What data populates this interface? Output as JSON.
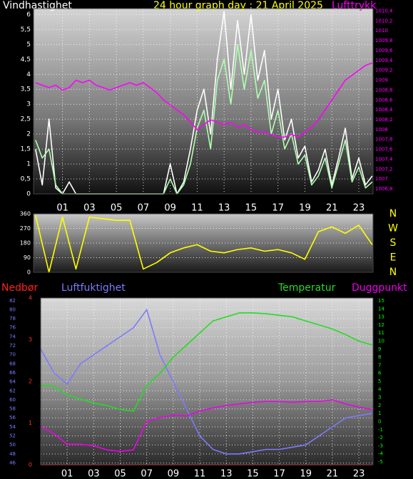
{
  "chart_data": [
    {
      "type": "line",
      "title": "24 hour graph day : 21 April 2025",
      "title_color": "#ffff00",
      "x": [
        -1,
        -0.5,
        0,
        0.5,
        1,
        1.5,
        2,
        2.5,
        3,
        3.5,
        4,
        4.5,
        5,
        5.5,
        6,
        6.5,
        7,
        7.5,
        8,
        8.5,
        9,
        9.5,
        10,
        10.5,
        11,
        11.5,
        12,
        12.5,
        13,
        13.5,
        14,
        14.5,
        15,
        15.5,
        16,
        16.5,
        17,
        17.5,
        18,
        18.5,
        19,
        19.5,
        20,
        20.5,
        21,
        21.5,
        22,
        22.5,
        23,
        23.5,
        24
      ],
      "xlim": [
        -1.15,
        24.06
      ],
      "xticks": [
        {
          "value": 1,
          "label": "01"
        },
        {
          "value": 3,
          "label": "03"
        },
        {
          "value": 5,
          "label": "05"
        },
        {
          "value": 7,
          "label": "07"
        },
        {
          "value": 9,
          "label": "09"
        },
        {
          "value": 11,
          "label": "11"
        },
        {
          "value": 13,
          "label": "13"
        },
        {
          "value": 15,
          "label": "15"
        },
        {
          "value": 17,
          "label": "17"
        },
        {
          "value": 19,
          "label": "19"
        },
        {
          "value": 21,
          "label": "21"
        },
        {
          "value": 23,
          "label": "23"
        }
      ],
      "ylim": [
        0,
        6.2
      ],
      "yticks": [
        0,
        {
          "value": 0.5,
          "label": "0,5"
        },
        1,
        {
          "value": 1.5,
          "label": "1,5"
        },
        2,
        {
          "value": 2.5,
          "label": "2,5"
        },
        3,
        {
          "value": 3.5,
          "label": "3,5"
        },
        4,
        {
          "value": 4.5,
          "label": "4,5"
        },
        5,
        {
          "value": 5.5,
          "label": "5,5"
        },
        6
      ],
      "y2lim": [
        1006.7,
        1010.45
      ],
      "y2ticks": [
        {
          "value": 1006.8,
          "label": "1006,8"
        },
        1007,
        {
          "value": 1007.2,
          "label": "1007,2"
        },
        {
          "value": 1007.4,
          "label": "1007,4"
        },
        {
          "value": 1007.6,
          "label": "1007,6"
        },
        {
          "value": 1007.8,
          "label": "1007,8"
        },
        1008,
        {
          "value": 1008.2,
          "label": "1008,2"
        },
        {
          "value": 1008.4,
          "label": "1008,4"
        },
        {
          "value": 1008.6,
          "label": "1008,6"
        },
        {
          "value": 1008.8,
          "label": "1008,8"
        },
        1009,
        {
          "value": 1009.2,
          "label": "1009,2"
        },
        {
          "value": 1009.4,
          "label": "1009,4"
        },
        {
          "value": 1009.6,
          "label": "1009,6"
        },
        {
          "value": 1009.8,
          "label": "1009,8"
        },
        1010,
        {
          "value": 1010.2,
          "label": "1010,2"
        },
        {
          "value": 1010.4,
          "label": "1010,4"
        }
      ],
      "grid": true,
      "y_color": "#ffffff",
      "y2_color": "#ff00ff",
      "series": [
        {
          "name": "Vindhastighet",
          "color": "#ffffff",
          "values": [
            1.5,
            0.3,
            2.5,
            0.2,
            0,
            0.4,
            0,
            0,
            0,
            0,
            0,
            0,
            0,
            0,
            0,
            0,
            0,
            0,
            0,
            0,
            1,
            0,
            0.4,
            1.5,
            2.8,
            3.5,
            2,
            4.5,
            6.1,
            3.5,
            5.8,
            4,
            6,
            3.8,
            4.8,
            2.5,
            3.5,
            1.8,
            2.5,
            1.2,
            1.6,
            0.4,
            0.8,
            1.5,
            0.3,
            1.2,
            2.2,
            0.5,
            1.2,
            0.3,
            0.6
          ]
        },
        {
          "color": "#b0ffb0",
          "values": [
            1.8,
            1.2,
            1.5,
            0.3,
            0,
            0,
            0,
            0,
            0,
            0,
            0,
            0,
            0,
            0,
            0,
            0,
            0,
            0,
            0,
            0,
            0.5,
            0,
            0.3,
            1,
            2.2,
            2.8,
            1.5,
            3.8,
            4.5,
            3,
            5,
            3.5,
            4.8,
            3.2,
            3.8,
            2,
            2.8,
            1.5,
            2,
            1,
            1.3,
            0.3,
            0.6,
            1.2,
            0.2,
            1,
            1.8,
            0.4,
            0.9,
            0.2,
            0.4
          ]
        },
        {
          "name": "Lufttrykk",
          "color": "#ff00ff",
          "axis": "y2",
          "values": [
            1008.95,
            1008.9,
            1008.85,
            1008.9,
            1008.8,
            1008.85,
            1009.0,
            1008.95,
            1009.0,
            1008.9,
            1008.85,
            1008.8,
            1008.85,
            1008.9,
            1008.95,
            1008.9,
            1008.95,
            1008.85,
            1008.75,
            1008.6,
            1008.5,
            1008.4,
            1008.3,
            1008.15,
            1008.0,
            1008.1,
            1008.2,
            1008.15,
            1008.1,
            1008.15,
            1008.05,
            1008.1,
            1008.0,
            1007.95,
            1007.95,
            1007.9,
            1007.85,
            1007.85,
            1007.9,
            1007.85,
            1007.95,
            1008.05,
            1008.2,
            1008.4,
            1008.6,
            1008.8,
            1009.0,
            1009.1,
            1009.2,
            1009.3,
            1009.35
          ]
        }
      ]
    },
    {
      "type": "line",
      "x": [
        -1,
        0,
        1,
        2,
        3,
        4,
        5,
        6,
        7,
        8,
        9,
        10,
        11,
        12,
        13,
        14,
        15,
        16,
        17,
        18,
        19,
        20,
        21,
        22,
        23,
        24
      ],
      "xlim": [
        -1.15,
        24.06
      ],
      "ylim": [
        0,
        360
      ],
      "yticks": [
        0,
        90,
        180,
        270,
        360
      ],
      "y2lim": [
        0,
        360
      ],
      "y2ticks": [
        {
          "value": 360,
          "label": "N"
        },
        {
          "value": 270,
          "label": "W"
        },
        {
          "value": 180,
          "label": "S"
        },
        {
          "value": 90,
          "label": "E"
        },
        {
          "value": 0,
          "label": "N"
        }
      ],
      "grid": true,
      "y_color": "#ffffff",
      "y2_color": "#ffff00",
      "series": [
        {
          "color": "#ffff00",
          "values": [
            350,
            0,
            340,
            20,
            340,
            330,
            320,
            320,
            20,
            60,
            120,
            150,
            170,
            130,
            120,
            140,
            150,
            130,
            140,
            120,
            80,
            250,
            280,
            240,
            290,
            170
          ]
        }
      ]
    },
    {
      "type": "line",
      "x": [
        -1,
        0,
        1,
        2,
        3,
        4,
        5,
        6,
        7,
        8,
        9,
        10,
        11,
        12,
        13,
        14,
        15,
        16,
        17,
        18,
        19,
        20,
        21,
        22,
        23,
        24
      ],
      "xlim": [
        -1,
        24.07
      ],
      "xticks": [
        {
          "value": 1,
          "label": "01"
        },
        {
          "value": 3,
          "label": "03"
        },
        {
          "value": 5,
          "label": "05"
        },
        {
          "value": 7,
          "label": "07"
        },
        {
          "value": 9,
          "label": "09"
        },
        {
          "value": 11,
          "label": "11"
        },
        {
          "value": 13,
          "label": "13"
        },
        {
          "value": 15,
          "label": "15"
        },
        {
          "value": 17,
          "label": "17"
        },
        {
          "value": 19,
          "label": "19"
        },
        {
          "value": 21,
          "label": "21"
        },
        {
          "value": 23,
          "label": "23"
        }
      ],
      "ylim": [
        45.6,
        82.6
      ],
      "yticks": [
        46,
        48,
        50,
        52,
        54,
        56,
        58,
        60,
        62,
        64,
        66,
        68,
        70,
        72,
        74,
        76,
        78,
        80,
        82
      ],
      "y2lim": [
        -5.35,
        15.35
      ],
      "y2ticks": [
        -5,
        -4,
        -3,
        -2,
        -1,
        0,
        1,
        2,
        3,
        4,
        5,
        6,
        7,
        8,
        9,
        10,
        11,
        12,
        13,
        14,
        15
      ],
      "y3lim": [
        0,
        4
      ],
      "y3ticks": [
        0,
        1,
        2,
        3,
        4
      ],
      "grid": true,
      "y_color": "#7b7bff",
      "y2_color": "#00ff00",
      "y3_color": "#ff3030",
      "series": [
        {
          "name": "Nedbør",
          "color": "#ff2020",
          "axis": "y3",
          "values": [
            0,
            0,
            0,
            0,
            0,
            0,
            0,
            0,
            0,
            0,
            0,
            0,
            0,
            0,
            0,
            0,
            0,
            0,
            0,
            0,
            0,
            0,
            0,
            0,
            0,
            0
          ]
        },
        {
          "name": "Luftfuktighet",
          "color": "#7b7bff",
          "values": [
            71.3,
            66,
            63.5,
            68,
            70,
            72,
            74,
            76,
            80,
            70,
            64,
            58,
            52,
            49,
            48,
            48,
            48.5,
            49,
            49,
            49.5,
            50,
            52,
            54,
            56,
            56.5,
            57
          ]
        },
        {
          "name": "Temperatur",
          "color": "#22dd22",
          "axis": "y2",
          "values": [
            4.5,
            4.4,
            3.3,
            2.8,
            2.3,
            2.0,
            1.5,
            1.3,
            4.5,
            6,
            8,
            9.5,
            11,
            12.5,
            13,
            13.5,
            13.5,
            13.4,
            13.2,
            13,
            12.5,
            12,
            11.5,
            10.8,
            10,
            9.5
          ]
        },
        {
          "name": "Duggpunkt",
          "color": "#ee00ee",
          "axis": "y2",
          "values": [
            -0.6,
            -1.5,
            -2.8,
            -2.8,
            -3,
            -3.5,
            -3.7,
            -3.5,
            0,
            0.5,
            0.8,
            0.7,
            1.3,
            1.7,
            2,
            2.2,
            2.4,
            2.5,
            2.5,
            2.4,
            2.5,
            2.5,
            2.7,
            2.2,
            1.8,
            1.5
          ]
        }
      ]
    }
  ]
}
